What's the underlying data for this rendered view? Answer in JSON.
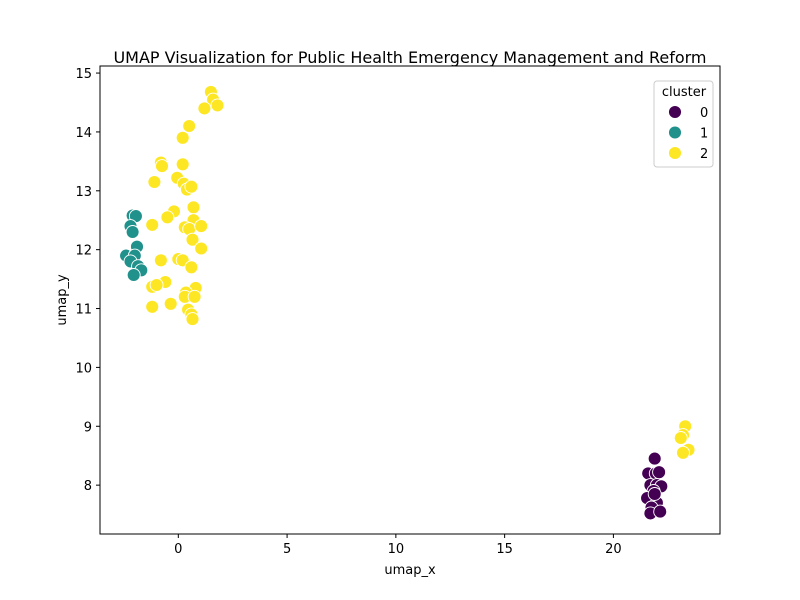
{
  "chart_data": {
    "type": "scatter",
    "title": "UMAP Visualization for Public Health Emergency Management and Reform",
    "xlabel": "umap_x",
    "ylabel": "umap_y",
    "xlim": [
      -3.6,
      24.9
    ],
    "ylim": [
      7.17,
      15.12
    ],
    "x_ticks": [
      0,
      5,
      10,
      15,
      20
    ],
    "y_ticks": [
      8,
      9,
      10,
      11,
      12,
      13,
      14,
      15
    ],
    "grid": false,
    "legend": {
      "title": "cluster",
      "placement": "top-right"
    },
    "series": [
      {
        "name": "0",
        "color": "#440154",
        "points": [
          [
            21.9,
            8.45
          ],
          [
            21.6,
            8.2
          ],
          [
            21.95,
            8.2
          ],
          [
            22.1,
            8.22
          ],
          [
            21.7,
            8.0
          ],
          [
            22.0,
            8.0
          ],
          [
            22.2,
            7.98
          ],
          [
            21.85,
            7.9
          ],
          [
            21.55,
            7.78
          ],
          [
            22.0,
            7.7
          ],
          [
            21.75,
            7.62
          ],
          [
            21.7,
            7.52
          ],
          [
            22.15,
            7.55
          ],
          [
            21.9,
            7.85
          ]
        ]
      },
      {
        "name": "1",
        "color": "#21918c",
        "points": [
          [
            -2.1,
            12.58
          ],
          [
            -1.95,
            12.57
          ],
          [
            -2.2,
            12.4
          ],
          [
            -2.1,
            12.3
          ],
          [
            -1.9,
            12.05
          ],
          [
            -2.4,
            11.9
          ],
          [
            -2.0,
            11.9
          ],
          [
            -2.2,
            11.8
          ],
          [
            -1.85,
            11.72
          ],
          [
            -1.7,
            11.65
          ],
          [
            -2.05,
            11.57
          ]
        ]
      },
      {
        "name": "2",
        "color": "#fde725",
        "points": [
          [
            1.5,
            14.68
          ],
          [
            1.6,
            14.55
          ],
          [
            1.8,
            14.45
          ],
          [
            1.2,
            14.4
          ],
          [
            0.5,
            14.1
          ],
          [
            0.2,
            13.9
          ],
          [
            -0.8,
            13.48
          ],
          [
            -0.75,
            13.42
          ],
          [
            0.2,
            13.45
          ],
          [
            -0.05,
            13.22
          ],
          [
            -1.1,
            13.15
          ],
          [
            0.25,
            13.12
          ],
          [
            0.4,
            13.02
          ],
          [
            0.6,
            13.07
          ],
          [
            0.7,
            12.72
          ],
          [
            -0.2,
            12.65
          ],
          [
            -0.5,
            12.55
          ],
          [
            0.7,
            12.5
          ],
          [
            -1.2,
            12.42
          ],
          [
            0.3,
            12.38
          ],
          [
            0.5,
            12.35
          ],
          [
            1.05,
            12.4
          ],
          [
            0.65,
            12.17
          ],
          [
            1.05,
            12.02
          ],
          [
            -0.8,
            11.82
          ],
          [
            0.0,
            11.84
          ],
          [
            0.2,
            11.82
          ],
          [
            0.6,
            11.7
          ],
          [
            -0.6,
            11.45
          ],
          [
            -1.2,
            11.37
          ],
          [
            -1.0,
            11.4
          ],
          [
            0.8,
            11.35
          ],
          [
            0.35,
            11.27
          ],
          [
            0.3,
            11.2
          ],
          [
            0.75,
            11.2
          ],
          [
            -1.2,
            11.03
          ],
          [
            -0.35,
            11.08
          ],
          [
            0.45,
            10.98
          ],
          [
            0.6,
            10.9
          ],
          [
            0.65,
            10.82
          ],
          [
            23.3,
            9.0
          ],
          [
            23.2,
            8.85
          ],
          [
            23.1,
            8.8
          ],
          [
            23.45,
            8.6
          ],
          [
            23.2,
            8.55
          ]
        ]
      }
    ]
  }
}
